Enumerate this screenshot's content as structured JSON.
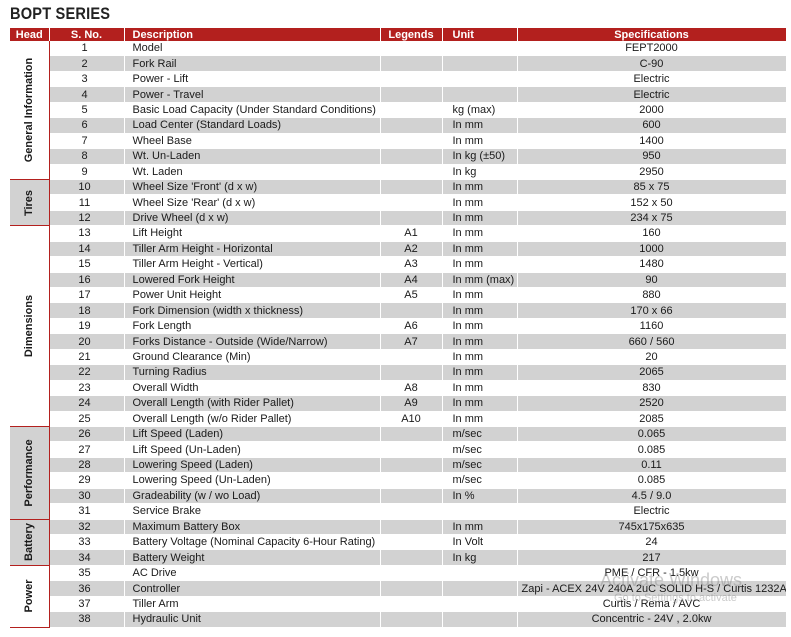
{
  "title": "BOPT SERIES",
  "columns": {
    "head": "Head",
    "sno": "S. No.",
    "desc": "Description",
    "legend": "Legends",
    "unit": "Unit",
    "spec": "Specifications"
  },
  "groups": [
    {
      "label": "General Information",
      "rows": [
        {
          "sno": "1",
          "desc": "Model",
          "legend": "",
          "unit": "",
          "spec": "FEPT2000"
        },
        {
          "sno": "2",
          "desc": "Fork Rail",
          "legend": "",
          "unit": "",
          "spec": "C-90"
        },
        {
          "sno": "3",
          "desc": "Power - Lift",
          "legend": "",
          "unit": "",
          "spec": "Electric"
        },
        {
          "sno": "4",
          "desc": "Power - Travel",
          "legend": "",
          "unit": "",
          "spec": "Electric"
        },
        {
          "sno": "5",
          "desc": "Basic Load Capacity (Under Standard Conditions)",
          "legend": "",
          "unit": "kg (max)",
          "spec": "2000"
        },
        {
          "sno": "6",
          "desc": "Load Center (Standard Loads)",
          "legend": "",
          "unit": "In mm",
          "spec": "600"
        },
        {
          "sno": "7",
          "desc": "Wheel Base",
          "legend": "",
          "unit": "In mm",
          "spec": "1400"
        },
        {
          "sno": "8",
          "desc": "Wt. Un-Laden",
          "legend": "",
          "unit": "In kg (±50)",
          "spec": "950"
        },
        {
          "sno": "9",
          "desc": "Wt. Laden",
          "legend": "",
          "unit": "In kg",
          "spec": "2950"
        }
      ]
    },
    {
      "label": "Tires",
      "rows": [
        {
          "sno": "10",
          "desc": "Wheel Size 'Front' (d x w)",
          "legend": "",
          "unit": "In mm",
          "spec": "85 x 75"
        },
        {
          "sno": "11",
          "desc": "Wheel Size 'Rear' (d x w)",
          "legend": "",
          "unit": "In mm",
          "spec": "152 x 50"
        },
        {
          "sno": "12",
          "desc": "Drive Wheel (d x w)",
          "legend": "",
          "unit": "In mm",
          "spec": "234 x 75"
        }
      ]
    },
    {
      "label": "Dimensions",
      "rows": [
        {
          "sno": "13",
          "desc": "Lift Height",
          "legend": "A1",
          "unit": "In mm",
          "spec": "160"
        },
        {
          "sno": "14",
          "desc": "Tiller Arm Height - Horizontal",
          "legend": "A2",
          "unit": "In mm",
          "spec": "1000"
        },
        {
          "sno": "15",
          "desc": "Tiller Arm Height - Vertical)",
          "legend": "A3",
          "unit": "In mm",
          "spec": "1480"
        },
        {
          "sno": "16",
          "desc": "Lowered Fork Height",
          "legend": "A4",
          "unit": "In mm (max)",
          "spec": "90"
        },
        {
          "sno": "17",
          "desc": "Power Unit Height",
          "legend": "A5",
          "unit": "In mm",
          "spec": "880"
        },
        {
          "sno": "18",
          "desc": "Fork Dimension (width x thickness)",
          "legend": "",
          "unit": "In mm",
          "spec": "170 x 66"
        },
        {
          "sno": "19",
          "desc": "Fork Length",
          "legend": "A6",
          "unit": "In mm",
          "spec": "1160"
        },
        {
          "sno": "20",
          "desc": "Forks Distance - Outside (Wide/Narrow)",
          "legend": "A7",
          "unit": "In mm",
          "spec": "660 / 560"
        },
        {
          "sno": "21",
          "desc": "Ground Clearance (Min)",
          "legend": "",
          "unit": "In mm",
          "spec": "20"
        },
        {
          "sno": "22",
          "desc": "Turning Radius",
          "legend": "",
          "unit": "In mm",
          "spec": "2065"
        },
        {
          "sno": "23",
          "desc": "Overall Width",
          "legend": "A8",
          "unit": "In mm",
          "spec": "830"
        },
        {
          "sno": "24",
          "desc": "Overall Length (with Rider Pallet)",
          "legend": "A9",
          "unit": "In mm",
          "spec": "2520"
        },
        {
          "sno": "25",
          "desc": "Overall Length (w/o Rider Pallet)",
          "legend": "A10",
          "unit": "In mm",
          "spec": "2085"
        }
      ]
    },
    {
      "label": "Performance",
      "rows": [
        {
          "sno": "26",
          "desc": "Lift Speed (Laden)",
          "legend": "",
          "unit": "m/sec",
          "spec": "0.065"
        },
        {
          "sno": "27",
          "desc": "Lift Speed (Un-Laden)",
          "legend": "",
          "unit": "m/sec",
          "spec": "0.085"
        },
        {
          "sno": "28",
          "desc": "Lowering Speed (Laden)",
          "legend": "",
          "unit": "m/sec",
          "spec": "0.11"
        },
        {
          "sno": "29",
          "desc": "Lowering Speed (Un-Laden)",
          "legend": "",
          "unit": "m/sec",
          "spec": "0.085"
        },
        {
          "sno": "30",
          "desc": "Gradeability (w / wo Load)",
          "legend": "",
          "unit": "In %",
          "spec": "4.5 / 9.0"
        },
        {
          "sno": "31",
          "desc": "Service Brake",
          "legend": "",
          "unit": "",
          "spec": "Electric"
        }
      ]
    },
    {
      "label": "Battery",
      "rows": [
        {
          "sno": "32",
          "desc": "Maximum Battery Box",
          "legend": "",
          "unit": "In mm",
          "spec": "745x175x635"
        },
        {
          "sno": "33",
          "desc": "Battery Voltage (Nominal Capacity 6-Hour Rating)",
          "legend": "",
          "unit": "In Volt",
          "spec": "24"
        },
        {
          "sno": "34",
          "desc": "Battery Weight",
          "legend": "",
          "unit": "In kg",
          "spec": "217"
        }
      ]
    },
    {
      "label": "Power",
      "rows": [
        {
          "sno": "35",
          "desc": "AC Drive",
          "legend": "",
          "unit": "",
          "spec": "PME / CFR - 1.5kw"
        },
        {
          "sno": "36",
          "desc": "Controller",
          "legend": "",
          "unit": "",
          "spec": "Zapi - ACEX 24V 240A 2uC SOLID H-S / Curtis 1232AC"
        },
        {
          "sno": "37",
          "desc": "Tiller Arm",
          "legend": "",
          "unit": "",
          "spec": "Curtis / Rema / AVC"
        },
        {
          "sno": "38",
          "desc": "Hydraulic Unit",
          "legend": "",
          "unit": "",
          "spec": "Concentric - 24V , 2.0kw"
        }
      ]
    }
  ],
  "watermark": {
    "line1": "Activate Windows",
    "line2": "Go to Settings to activate"
  }
}
